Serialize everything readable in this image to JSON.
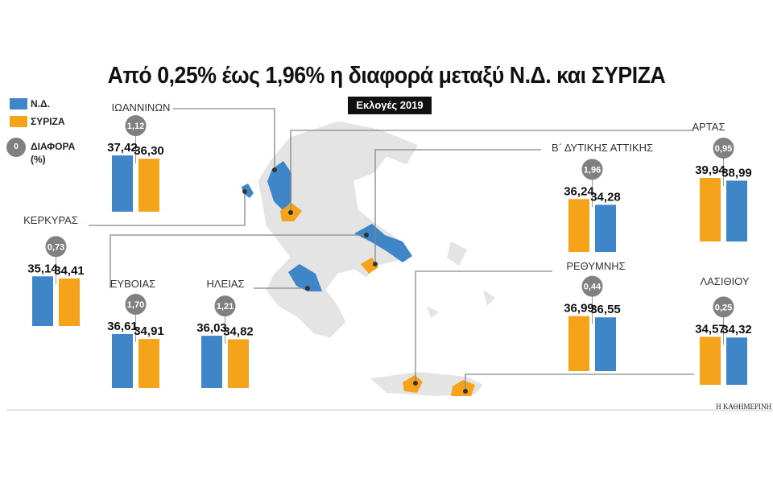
{
  "chart_data": {
    "type": "bar",
    "title": "Από 0,25% έως 1,96% η διαφορά μεταξύ Ν.Δ. και ΣΥΡΙΖΑ",
    "subtitle": "Εκλογές 2019",
    "legend": {
      "nd": "Ν.Δ.",
      "syriza": "ΣΥΡΙΖΑ",
      "diff_symbol": "0",
      "diff": "ΔΙΑΦΟΡΑ",
      "diff_unit": "(%)",
      "placement": "top-left"
    },
    "colors": {
      "nd": "#3f86c8",
      "syriza": "#f5a31a",
      "diff": "#808080",
      "map": "#e4e4e4"
    },
    "groups": [
      {
        "region": "ΙΩΑΝΝΙΝΩΝ",
        "diff": "1,12",
        "nd": 37.42,
        "syriza": 36.3,
        "nd_label": "37,42",
        "syriza_label": "36,30",
        "first": "nd"
      },
      {
        "region": "ΚΕΡΚΥΡΑΣ",
        "diff": "0,73",
        "nd": 35.14,
        "syriza": 34.41,
        "nd_label": "35,14",
        "syriza_label": "34,41",
        "first": "nd"
      },
      {
        "region": "ΕΥΒΟΙΑΣ",
        "diff": "1,70",
        "nd": 36.61,
        "syriza": 34.91,
        "nd_label": "36,61",
        "syriza_label": "34,91",
        "first": "nd"
      },
      {
        "region": "ΗΛΕΙΑΣ",
        "diff": "1,21",
        "nd": 36.03,
        "syriza": 34.82,
        "nd_label": "36,03",
        "syriza_label": "34,82",
        "first": "nd"
      },
      {
        "region": "Β΄ ΔΥΤΙΚΗΣ ΑΤΤΙΚΗΣ",
        "diff": "1,96",
        "nd": 34.28,
        "syriza": 36.24,
        "nd_label": "34,28",
        "syriza_label": "36,24",
        "first": "syriza"
      },
      {
        "region": "ΑΡΤΑΣ",
        "diff": "0,95",
        "nd": 38.99,
        "syriza": 39.94,
        "nd_label": "38,99",
        "syriza_label": "39,94",
        "first": "syriza"
      },
      {
        "region": "ΡΕΘΥΜΝΗΣ",
        "diff": "0,44",
        "nd": 36.55,
        "syriza": 36.99,
        "nd_label": "36,55",
        "syriza_label": "36,99",
        "first": "syriza"
      },
      {
        "region": "ΛΑΣΙΘΙΟΥ",
        "diff": "0,25",
        "nd": 34.32,
        "syriza": 34.57,
        "nd_label": "34,32",
        "syriza_label": "34,57",
        "first": "syriza"
      }
    ]
  },
  "source": "Η ΚΑΘΗΜΕΡΙΝΗ"
}
